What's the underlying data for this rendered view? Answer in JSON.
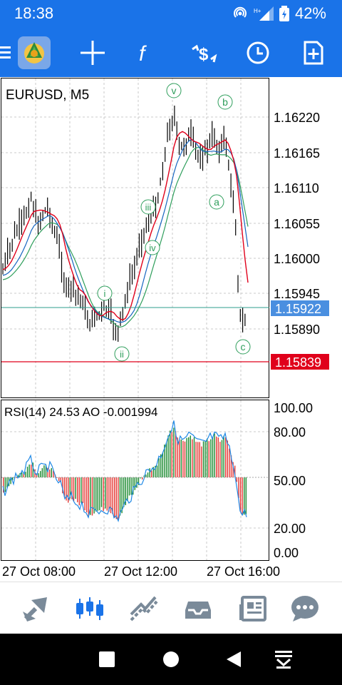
{
  "status": {
    "time": "18:38",
    "battery": "42%"
  },
  "toolbar": {
    "items": [
      "menu-icon",
      "app-logo",
      "crosshair-icon",
      "indicators-icon",
      "objects-icon",
      "timeframe-icon",
      "new-order-icon"
    ]
  },
  "chart": {
    "symbol_title": "EURUSD, M5",
    "price_labels": [
      "1.16220",
      "1.16165",
      "1.16110",
      "1.16055",
      "1.16000",
      "1.15945",
      "1.15890"
    ],
    "current_price": "1.15922",
    "stop_price": "1.15839",
    "wave_labels": [
      "v",
      "b",
      "iii",
      "iv",
      "a",
      "i",
      "ii",
      "c"
    ],
    "indicator_title": "RSI(14) 24.53 AO -0.001994",
    "rsi_levels": [
      "100.00",
      "80.00",
      "50.00",
      "20.00",
      "0.00"
    ],
    "time_labels": [
      "27 Oct 08:00",
      "27 Oct 12:00",
      "27 Oct 16:00"
    ],
    "colors": {
      "accent": "#1a73e8",
      "ma_red": "#e0001b",
      "ma_blue": "#1565c0",
      "ma_green": "#2e9e5b",
      "ao_green": "#1b8a2f",
      "ao_red": "#e53935",
      "rsi_line": "#1e88e5"
    }
  },
  "bottom_nav": [
    "quotes-icon",
    "chart-icon",
    "trade-icon",
    "history-icon",
    "news-icon",
    "chat-icon"
  ]
}
